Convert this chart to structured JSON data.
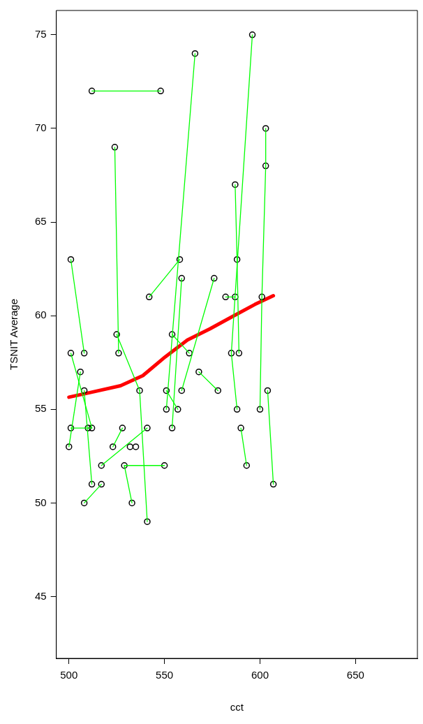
{
  "chart_data": {
    "type": "scatter",
    "xlabel": "cct",
    "ylabel": "TSNIT Average",
    "xlim": [
      493.4,
      682.4
    ],
    "ylim": [
      41.7,
      76.3
    ],
    "xticks": [
      500,
      550,
      600,
      650
    ],
    "yticks": [
      45,
      50,
      55,
      60,
      65,
      70,
      75
    ],
    "grid": false,
    "legend": false,
    "series": [
      {
        "type": "line",
        "color": "#00ff00",
        "x": [
          512,
          548
        ],
        "values": [
          72,
          72
        ]
      },
      {
        "type": "line",
        "color": "#00ff00",
        "x": [
          566,
          551
        ],
        "values": [
          74,
          55
        ]
      },
      {
        "type": "line",
        "color": "#00ff00",
        "x": [
          551,
          557
        ],
        "values": [
          56,
          55
        ]
      },
      {
        "type": "line",
        "color": "#00ff00",
        "x": [
          596,
          585,
          588
        ],
        "values": [
          75,
          58,
          55
        ]
      },
      {
        "type": "line",
        "color": "#00ff00",
        "x": [
          587,
          588,
          589
        ],
        "values": [
          67,
          63,
          58
        ]
      },
      {
        "type": "line",
        "color": "#00ff00",
        "x": [
          603,
          603,
          601,
          600
        ],
        "values": [
          70,
          68,
          61,
          55
        ]
      },
      {
        "type": "line",
        "color": "#00ff00",
        "x": [
          604,
          607
        ],
        "values": [
          56,
          51
        ]
      },
      {
        "type": "line",
        "color": "#00ff00",
        "x": [
          524,
          526
        ],
        "values": [
          69,
          58
        ]
      },
      {
        "type": "line",
        "color": "#00ff00",
        "x": [
          525,
          537
        ],
        "values": [
          59,
          56
        ]
      },
      {
        "type": "line",
        "color": "#00ff00",
        "x": [
          537,
          541
        ],
        "values": [
          56,
          49
        ]
      },
      {
        "type": "line",
        "color": "#00ff00",
        "x": [
          501,
          508
        ],
        "values": [
          63,
          58
        ]
      },
      {
        "type": "line",
        "color": "#00ff00",
        "x": [
          558,
          542
        ],
        "values": [
          63,
          61
        ]
      },
      {
        "type": "line",
        "color": "#00ff00",
        "x": [
          559,
          554
        ],
        "values": [
          62,
          54
        ]
      },
      {
        "type": "line",
        "color": "#00ff00",
        "x": [
          576,
          559
        ],
        "values": [
          62,
          56
        ]
      },
      {
        "type": "line",
        "color": "#00ff00",
        "x": [
          554,
          563
        ],
        "values": [
          59,
          58
        ]
      },
      {
        "type": "line",
        "color": "#00ff00",
        "x": [
          582,
          587
        ],
        "values": [
          61,
          61
        ]
      },
      {
        "type": "line",
        "color": "#00ff00",
        "x": [
          568,
          578
        ],
        "values": [
          57,
          56
        ]
      },
      {
        "type": "line",
        "color": "#00ff00",
        "x": [
          590,
          593
        ],
        "values": [
          54,
          52
        ]
      },
      {
        "type": "line",
        "color": "#00ff00",
        "x": [
          501,
          512
        ],
        "values": [
          58,
          54
        ]
      },
      {
        "type": "line",
        "color": "#00ff00",
        "x": [
          506,
          500
        ],
        "values": [
          57,
          53
        ]
      },
      {
        "type": "line",
        "color": "#00ff00",
        "x": [
          508,
          512
        ],
        "values": [
          56,
          51
        ]
      },
      {
        "type": "line",
        "color": "#00ff00",
        "x": [
          501,
          512
        ],
        "values": [
          54,
          54
        ]
      },
      {
        "type": "line",
        "color": "#00ff00",
        "x": [
          528,
          523
        ],
        "values": [
          54,
          53
        ]
      },
      {
        "type": "line",
        "color": "#00ff00",
        "x": [
          541,
          517
        ],
        "values": [
          54,
          52
        ]
      },
      {
        "type": "line",
        "color": "#00ff00",
        "x": [
          529,
          550
        ],
        "values": [
          52,
          52
        ]
      },
      {
        "type": "line",
        "color": "#00ff00",
        "x": [
          529,
          533
        ],
        "values": [
          52,
          50
        ]
      },
      {
        "type": "line",
        "color": "#00ff00",
        "x": [
          517,
          508
        ],
        "values": [
          51,
          50
        ]
      },
      {
        "marker": "circle",
        "color": "#000000",
        "x": [
          512,
          548,
          566,
          596,
          524,
          603,
          603,
          587,
          501,
          558,
          588,
          559,
          576,
          542,
          582,
          587,
          601,
          525,
          554,
          501,
          508,
          526,
          563,
          585,
          589,
          506,
          568,
          508,
          537,
          551,
          559,
          578,
          604,
          551,
          557,
          588,
          600,
          501,
          510,
          512,
          528,
          541,
          554,
          590,
          500,
          523,
          532,
          535,
          517,
          529,
          550,
          593,
          512,
          517,
          607,
          508,
          533,
          541
        ],
        "values": [
          72,
          72,
          74,
          75,
          69,
          70,
          68,
          67,
          63,
          63,
          63,
          62,
          62,
          61,
          61,
          61,
          61,
          59,
          59,
          58,
          58,
          58,
          58,
          58,
          58,
          57,
          57,
          56,
          56,
          56,
          56,
          56,
          56,
          55,
          55,
          55,
          55,
          54,
          54,
          54,
          54,
          54,
          54,
          54,
          53,
          53,
          53,
          53,
          52,
          52,
          52,
          52,
          51,
          51,
          51,
          50,
          50,
          49
        ]
      },
      {
        "type": "line",
        "color": "#ff0000",
        "x": [
          500,
          511.3,
          527,
          538.7,
          550.4,
          562,
          573.8,
          585.5,
          597.3,
          607
        ],
        "values": [
          55.65,
          55.9,
          56.26,
          56.8,
          57.8,
          58.7,
          59.3,
          59.95,
          60.6,
          61.07
        ]
      }
    ]
  }
}
